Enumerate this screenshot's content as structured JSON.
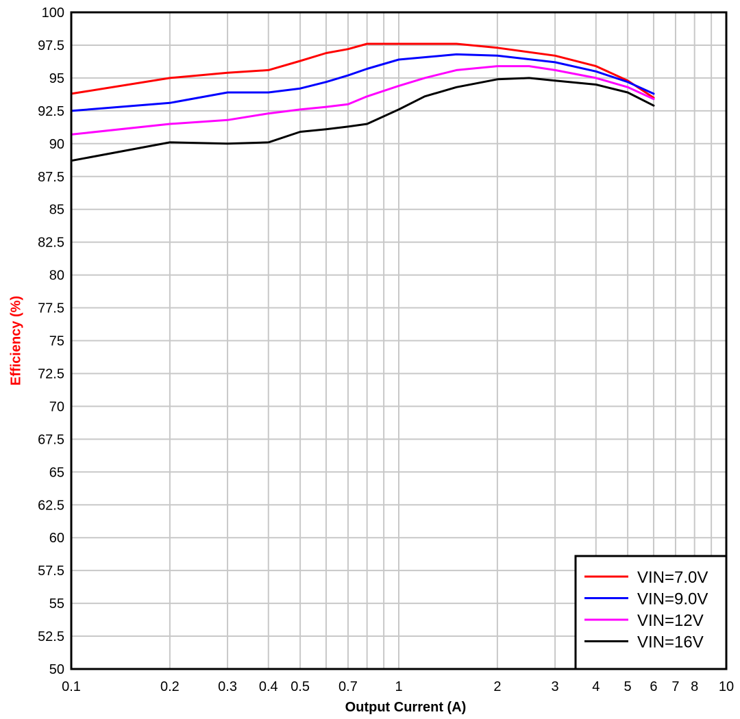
{
  "chart_data": {
    "type": "line",
    "xscale": "log",
    "xlim": [
      0.1,
      10
    ],
    "ylim": [
      50,
      100
    ],
    "grid": true,
    "legend_position": "bottom-right",
    "xlabel": "Output Current (A)",
    "ylabel": "Efficiency (%)",
    "ylabel_color": "#ff0000",
    "x_ticks": [
      0.1,
      0.2,
      0.3,
      0.4,
      0.5,
      0.7,
      1,
      2,
      3,
      4,
      5,
      6,
      7,
      8,
      10
    ],
    "x_tick_labels": [
      "0.1",
      "0.2",
      "0.3",
      "0.4",
      "0.5",
      "0.7",
      "1",
      "2",
      "3",
      "4",
      "5",
      "6",
      "7",
      "8",
      "10"
    ],
    "x_minor_grid": [
      0.6,
      0.8,
      0.9,
      9
    ],
    "y_ticks": [
      50,
      52.5,
      55,
      57.5,
      60,
      62.5,
      65,
      67.5,
      70,
      72.5,
      75,
      77.5,
      80,
      82.5,
      85,
      87.5,
      90,
      92.5,
      95,
      97.5,
      100
    ],
    "y_tick_labels": [
      "50",
      "52.5",
      "55",
      "57.5",
      "60",
      "62.5",
      "65",
      "67.5",
      "70",
      "72.5",
      "75",
      "77.5",
      "80",
      "82.5",
      "85",
      "87.5",
      "90",
      "92.5",
      "95",
      "97.5",
      "100"
    ],
    "series": [
      {
        "name": "VIN=7.0V",
        "color": "#ff0000",
        "x": [
          0.1,
          0.2,
          0.3,
          0.4,
          0.5,
          0.6,
          0.7,
          0.8,
          1.0,
          1.5,
          2.0,
          3.0,
          4.0,
          5.0,
          6.0
        ],
        "y": [
          93.8,
          95.0,
          95.4,
          95.6,
          96.3,
          96.9,
          97.2,
          97.6,
          97.6,
          97.6,
          97.3,
          96.7,
          95.9,
          94.8,
          93.5
        ]
      },
      {
        "name": "VIN=9.0V",
        "color": "#0000ff",
        "x": [
          0.1,
          0.2,
          0.3,
          0.4,
          0.5,
          0.6,
          0.7,
          0.8,
          1.0,
          1.5,
          2.0,
          3.0,
          4.0,
          5.0,
          6.0
        ],
        "y": [
          92.5,
          93.1,
          93.9,
          93.9,
          94.2,
          94.7,
          95.2,
          95.7,
          96.4,
          96.8,
          96.7,
          96.2,
          95.5,
          94.7,
          93.8
        ]
      },
      {
        "name": "VIN=12V",
        "color": "#ff00ff",
        "x": [
          0.1,
          0.2,
          0.3,
          0.4,
          0.5,
          0.6,
          0.7,
          0.8,
          1.0,
          1.2,
          1.5,
          2.0,
          2.5,
          3.0,
          4.0,
          5.0,
          6.0
        ],
        "y": [
          90.7,
          91.5,
          91.8,
          92.3,
          92.6,
          92.8,
          93.0,
          93.6,
          94.4,
          95.0,
          95.6,
          95.9,
          95.9,
          95.6,
          95.0,
          94.3,
          93.4
        ]
      },
      {
        "name": "VIN=16V",
        "color": "#000000",
        "x": [
          0.1,
          0.2,
          0.3,
          0.4,
          0.5,
          0.6,
          0.7,
          0.8,
          1.0,
          1.2,
          1.5,
          2.0,
          2.5,
          3.0,
          4.0,
          5.0,
          6.0
        ],
        "y": [
          88.7,
          90.1,
          90.0,
          90.1,
          90.9,
          91.1,
          91.3,
          91.5,
          92.6,
          93.6,
          94.3,
          94.9,
          95.0,
          94.8,
          94.5,
          93.9,
          92.9
        ]
      }
    ]
  }
}
